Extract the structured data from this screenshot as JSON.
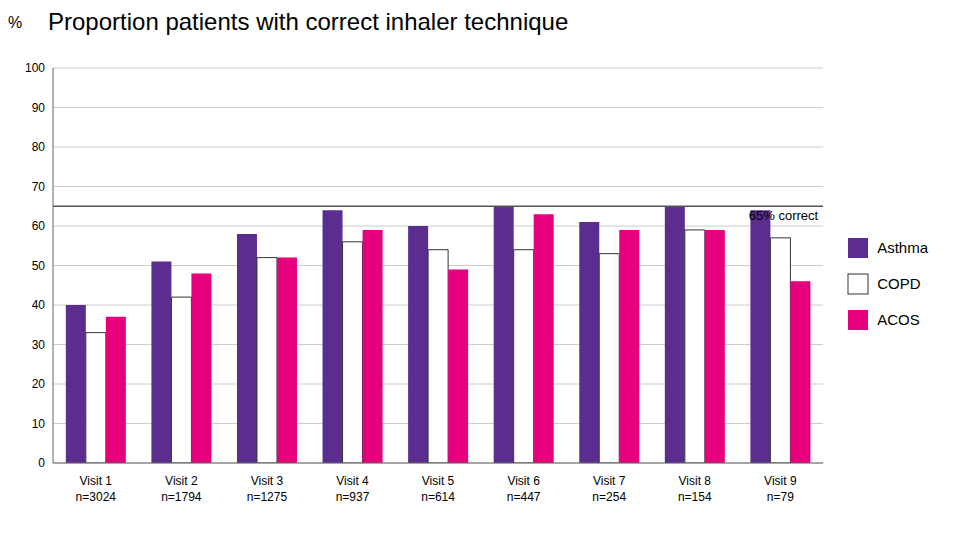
{
  "chart_data": {
    "type": "bar",
    "title": "Proportion patients with correct inhaler technique",
    "y_label": "%",
    "categories": [
      "Visit 1\nn=3024",
      "Visit 2\nn=1794",
      "Visit 3\nn=1275",
      "Visit 4\nn=937",
      "Visit 5\nn=614",
      "Visit 6\nn=447",
      "Visit 7\nn=254",
      "Visit 8\nn=154",
      "Visit 9\nn=79"
    ],
    "series": [
      {
        "name": "Asthma",
        "color": "#5b2d8e",
        "values": [
          40,
          51,
          58,
          64,
          60,
          65,
          61,
          65,
          64
        ]
      },
      {
        "name": "COPD",
        "color": "#ffffff",
        "values": [
          33,
          42,
          52,
          56,
          54,
          54,
          53,
          59,
          57
        ]
      },
      {
        "name": "ACOS",
        "color": "#e6007e",
        "values": [
          37,
          48,
          52,
          59,
          49,
          63,
          59,
          59,
          46
        ]
      }
    ],
    "annotations": [
      {
        "type": "hline",
        "y": 65,
        "label": "65% correct"
      }
    ],
    "ylim": [
      0,
      100
    ],
    "yticks": [
      0,
      10,
      20,
      30,
      40,
      50,
      60,
      70,
      80,
      90,
      100
    ],
    "grid": true,
    "legend": "right"
  }
}
